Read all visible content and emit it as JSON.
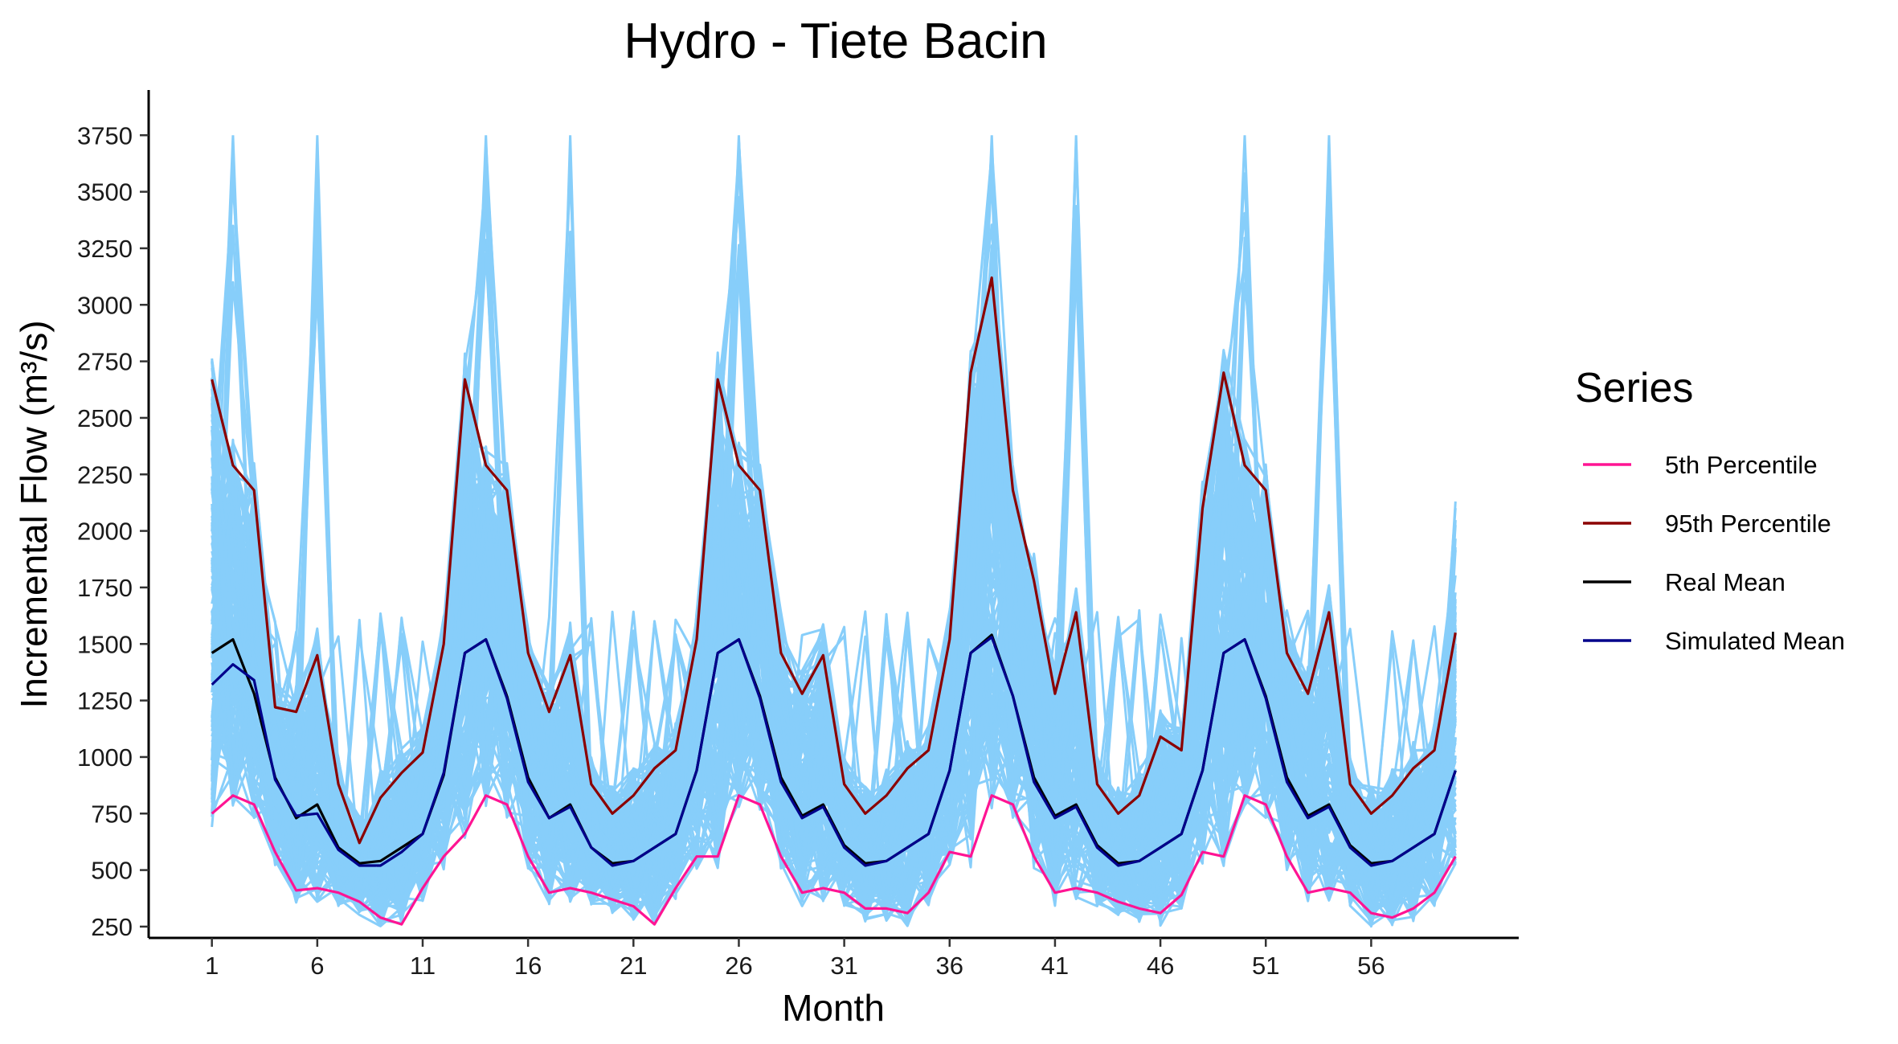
{
  "chart_data": {
    "type": "line",
    "title": "Hydro - Tiete Bacin",
    "xlabel": "Month",
    "ylabel": "Incremental Flow (m³/s)",
    "xlim": [
      -2,
      63
    ],
    "ylim": [
      200,
      3950
    ],
    "x_ticks": [
      1,
      6,
      11,
      16,
      21,
      26,
      31,
      36,
      41,
      46,
      51,
      56
    ],
    "y_ticks": [
      250,
      500,
      750,
      1000,
      1250,
      1500,
      1750,
      2000,
      2250,
      2500,
      2750,
      3000,
      3250,
      3500,
      3750
    ],
    "grid": false,
    "legend": {
      "title": "Series",
      "position": "right",
      "entries": [
        {
          "name": "5th Percentile",
          "color": "#FF1493"
        },
        {
          "name": "95th Percentile",
          "color": "#8B0000"
        },
        {
          "name": "Real Mean",
          "color": "#000000"
        },
        {
          "name": "Simulated Mean",
          "color": "#00008B"
        }
      ]
    },
    "simulation_color": "#87CEFA",
    "series": [
      {
        "name": "5th Percentile",
        "color": "#FF1493",
        "values": [
          750,
          830,
          790,
          580,
          410,
          420,
          400,
          360,
          290,
          260,
          420,
          560,
          660,
          830,
          790,
          560,
          400,
          420,
          400,
          370,
          340,
          260,
          420,
          560,
          560,
          830,
          790,
          560,
          400,
          420,
          400,
          330,
          330,
          310,
          400,
          580,
          560,
          830,
          790,
          560,
          400,
          420,
          400,
          360,
          330,
          310,
          390,
          580,
          560,
          830,
          790,
          560,
          400,
          420,
          400,
          310,
          290,
          330,
          400,
          560
        ]
      },
      {
        "name": "95th Percentile",
        "color": "#8B0000",
        "values": [
          2670,
          2290,
          2180,
          1220,
          1200,
          1450,
          880,
          620,
          820,
          930,
          1020,
          1500,
          2670,
          2290,
          2180,
          1460,
          1200,
          1450,
          880,
          750,
          830,
          950,
          1030,
          1520,
          2670,
          2290,
          2180,
          1460,
          1280,
          1450,
          880,
          750,
          830,
          950,
          1030,
          1520,
          2700,
          3120,
          2180,
          1780,
          1280,
          1640,
          880,
          750,
          830,
          1090,
          1030,
          2100,
          2700,
          2290,
          2180,
          1460,
          1280,
          1640,
          880,
          750,
          830,
          950,
          1030,
          1550
        ]
      },
      {
        "name": "Real Mean",
        "color": "#000000",
        "values": [
          1460,
          1520,
          1280,
          910,
          730,
          790,
          600,
          530,
          540,
          600,
          660,
          920,
          1460,
          1520,
          1270,
          910,
          730,
          790,
          600,
          530,
          540,
          600,
          660,
          940,
          1460,
          1520,
          1270,
          910,
          740,
          790,
          610,
          530,
          540,
          600,
          660,
          940,
          1460,
          1540,
          1270,
          910,
          740,
          790,
          610,
          530,
          540,
          600,
          660,
          940,
          1460,
          1520,
          1270,
          910,
          740,
          790,
          610,
          530,
          540,
          600,
          660,
          940
        ]
      },
      {
        "name": "Simulated Mean",
        "color": "#00008B",
        "values": [
          1320,
          1410,
          1340,
          900,
          740,
          750,
          590,
          520,
          520,
          580,
          660,
          930,
          1460,
          1520,
          1260,
          890,
          730,
          780,
          600,
          520,
          540,
          600,
          660,
          940,
          1460,
          1520,
          1260,
          890,
          730,
          780,
          600,
          520,
          540,
          600,
          660,
          940,
          1460,
          1530,
          1270,
          890,
          730,
          780,
          600,
          520,
          540,
          600,
          660,
          940,
          1460,
          1520,
          1260,
          890,
          730,
          780,
          600,
          520,
          540,
          600,
          660,
          940
        ]
      }
    ],
    "simulation_spike_peaks": [
      {
        "x": 2,
        "y": 3750
      },
      {
        "x": 6,
        "y": 3750
      },
      {
        "x": 14,
        "y": 3750
      },
      {
        "x": 18,
        "y": 3750
      },
      {
        "x": 26,
        "y": 3750
      },
      {
        "x": 38,
        "y": 3750
      },
      {
        "x": 42,
        "y": 3750
      },
      {
        "x": 50,
        "y": 3750
      },
      {
        "x": 54,
        "y": 3750
      },
      {
        "x": 60,
        "y": 2130
      }
    ]
  }
}
